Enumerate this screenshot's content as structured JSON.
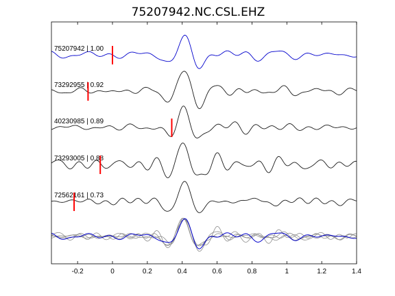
{
  "chart_data": {
    "type": "line",
    "title": "75207942.NC.CSL.EHZ",
    "xlabel": "",
    "ylabel": "",
    "xlim": [
      -0.35,
      1.4
    ],
    "x_ticks": [
      -0.2,
      0,
      0.2,
      0.4,
      0.6,
      0.8,
      1,
      1.2,
      1.4
    ],
    "x_tick_labels": [
      "-0.2",
      "0",
      "0.2",
      "0.4",
      "0.6",
      "0.8",
      "1",
      "1.2",
      "1.4"
    ],
    "y_ticks": [],
    "grid": false,
    "legend": "none",
    "colors": {
      "reference": "#0000cc",
      "neighbor": "#1a1a1a",
      "stack_neighbor": "#8c8c8c",
      "pick": "#ff0000",
      "frame": "#000000"
    },
    "series": [
      {
        "label": "75207942 | 1.00",
        "id": "75207942",
        "cc": "1.00",
        "pick_time": 0.0,
        "role": "reference"
      },
      {
        "label": "73292955 | 0.92",
        "id": "73292955",
        "cc": "0.92",
        "pick_time": -0.14,
        "role": "neighbor"
      },
      {
        "label": "40230985 | 0.89",
        "id": "40230985",
        "cc": "0.89",
        "pick_time": 0.34,
        "role": "neighbor"
      },
      {
        "label": "73293005 | 0.88",
        "id": "73293005",
        "cc": "0.88",
        "pick_time": -0.07,
        "role": "neighbor"
      },
      {
        "label": "72562161 | 0.73",
        "id": "72562161",
        "cc": "0.73",
        "pick_time": -0.22,
        "role": "neighbor"
      }
    ],
    "annotations": [
      {
        "type": "overlay",
        "description_role": "aligned overlay of all traces"
      }
    ]
  }
}
